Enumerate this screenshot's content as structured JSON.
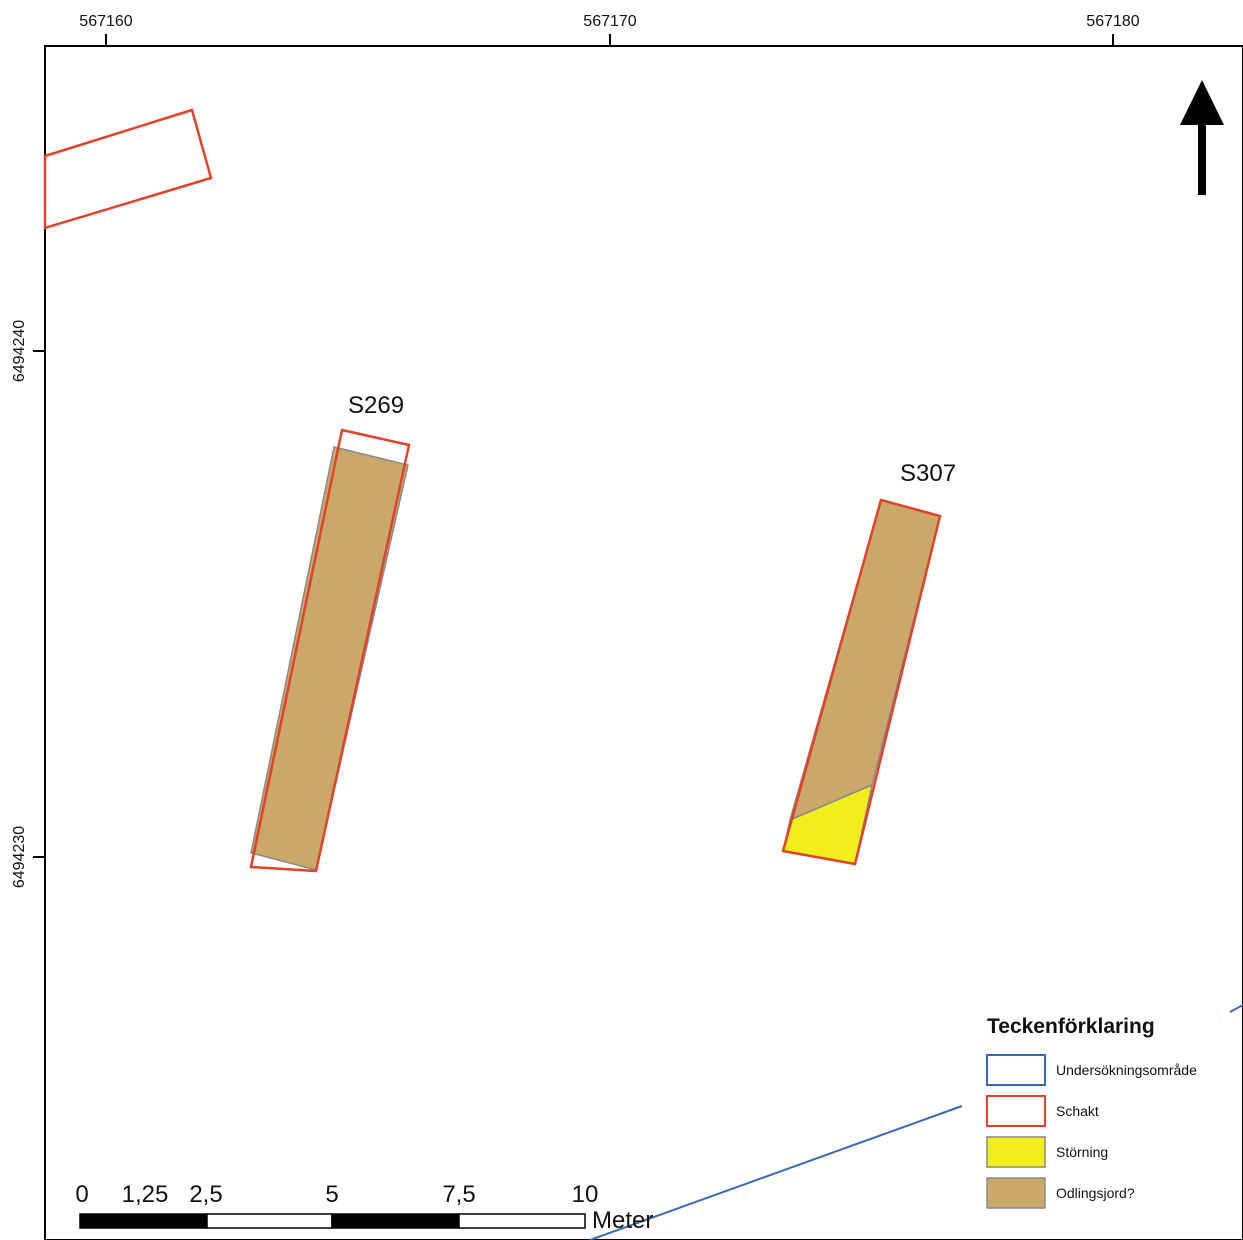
{
  "coordinates": {
    "easting": [
      "567160",
      "567170",
      "567180"
    ],
    "northing": [
      "6494240",
      "6494230"
    ]
  },
  "features": {
    "s269": "S269",
    "s307": "S307"
  },
  "scale_bar": {
    "ticks": [
      "0",
      "1,25",
      "2,5",
      "5",
      "7,5",
      "10"
    ],
    "unit": "Meter"
  },
  "legend": {
    "title": "Teckenförklaring",
    "items": [
      {
        "label": "Undersökningsområde",
        "stroke": "#3a6ab4",
        "fill": "#ffffff"
      },
      {
        "label": "Schakt",
        "stroke": "#e0432a",
        "fill": "#ffffff"
      },
      {
        "label": "Störning",
        "stroke": "#8a8a8a",
        "fill": "#f2ee1c"
      },
      {
        "label": "Odlingsjord?",
        "stroke": "#8a8a8a",
        "fill": "#c9a86a"
      }
    ]
  },
  "colors": {
    "schakt_outline": "#e0432a",
    "survey_area_outline": "#3a6ab4",
    "disturbance_fill": "#f2ee1c",
    "soil_fill": "#c9a86a",
    "frame": "#000000"
  },
  "north_arrow": "north-arrow-icon"
}
